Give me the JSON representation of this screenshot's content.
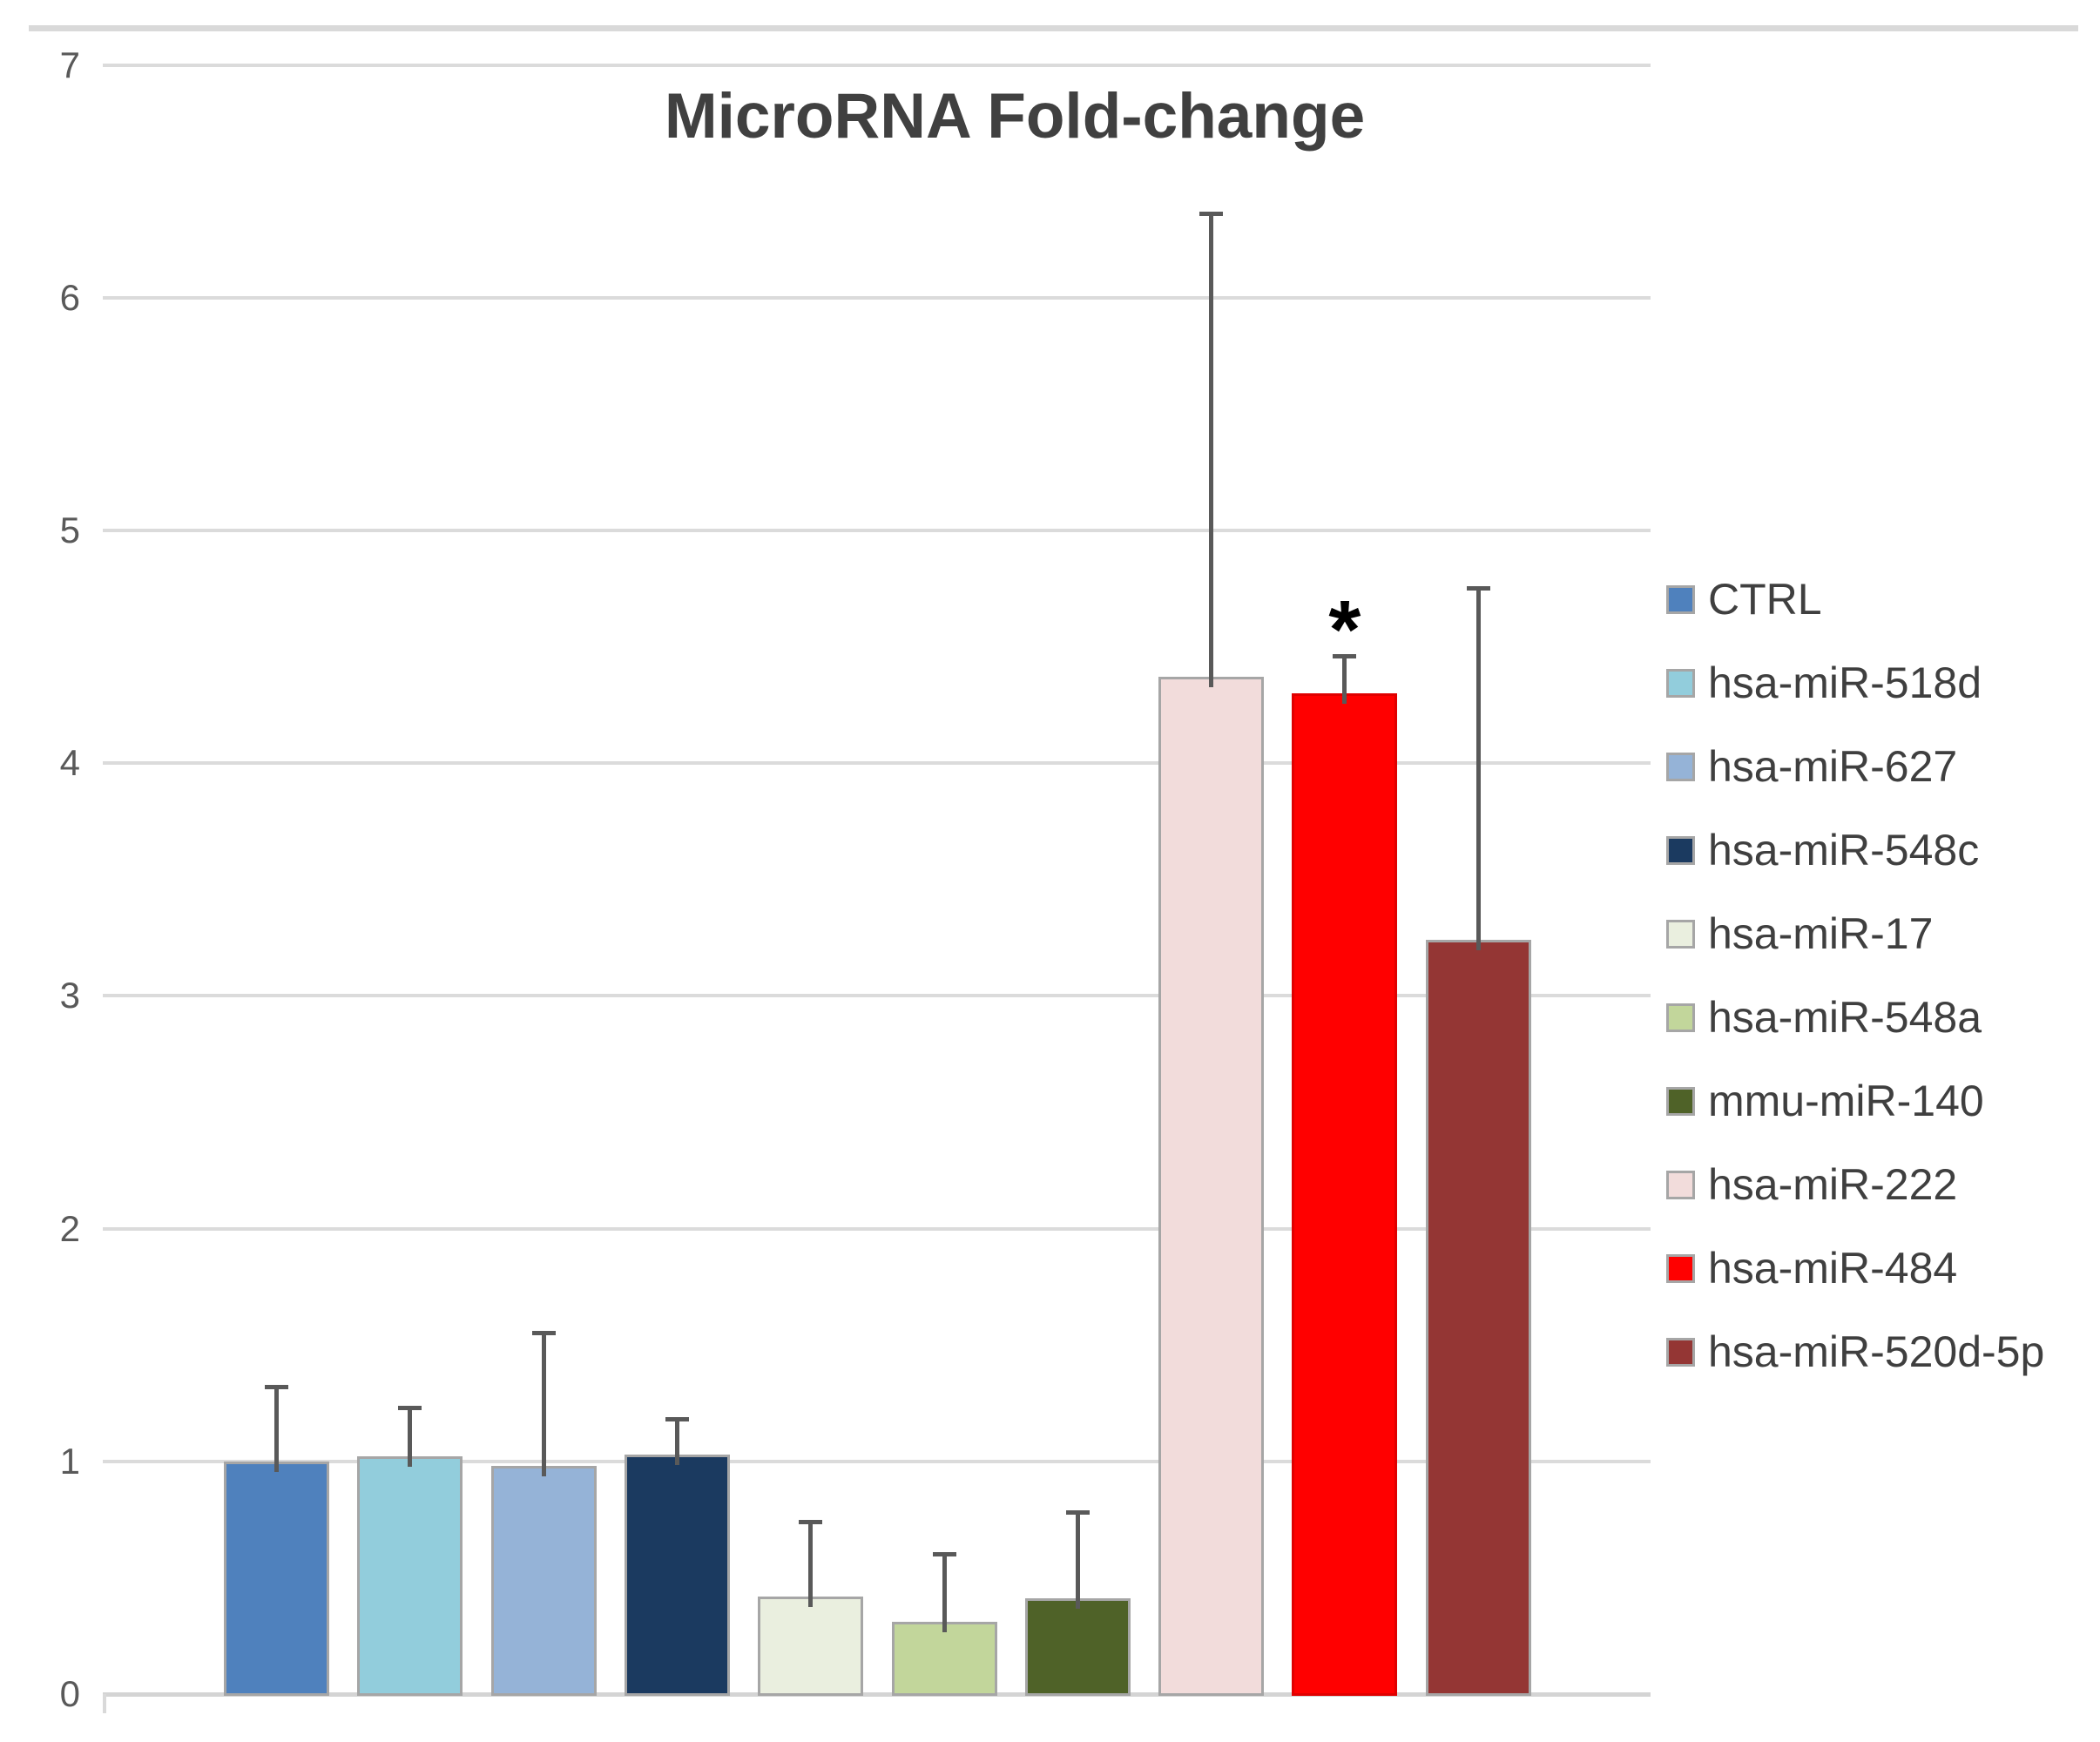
{
  "colors": {
    "title_text": "#404040",
    "axis_tick_text": "#595959",
    "legend_text": "#3F3F3F",
    "gridline": "#DBDBDB",
    "axis_line": "#D4D4D4",
    "error_bar": "#595959",
    "bar_border": "#A6A6A6",
    "red_bar_border": "#E00000",
    "top_border_strip": "#D9D9D9"
  },
  "chart_data": {
    "type": "bar",
    "title": "MicroRNA Fold-change",
    "xlabel": "",
    "ylabel": "",
    "ylim": [
      0,
      7
    ],
    "yticks": [
      0,
      1,
      2,
      3,
      4,
      5,
      6,
      7
    ],
    "grid": true,
    "legend_position": "right",
    "categories": [
      "CTRL",
      "hsa-miR-518d",
      "hsa-miR-627",
      "hsa-miR-548c",
      "hsa-miR-17",
      "hsa-miR-548a",
      "mmu-miR-140",
      "hsa-miR-222",
      "hsa-miR-484",
      "hsa-miR-520d-5p"
    ],
    "series": [
      {
        "name": "CTRL",
        "value": 1.0,
        "error_top": 1.33,
        "color": "#4F81BD"
      },
      {
        "name": "hsa-miR-518d",
        "value": 1.02,
        "error_top": 1.24,
        "color": "#92CDDC"
      },
      {
        "name": "hsa-miR-627",
        "value": 0.98,
        "error_top": 1.56,
        "color": "#95B3D7"
      },
      {
        "name": "hsa-miR-548c",
        "value": 1.03,
        "error_top": 1.19,
        "color": "#1B3A60"
      },
      {
        "name": "hsa-miR-17",
        "value": 0.42,
        "error_top": 0.75,
        "color": "#EAEFDF"
      },
      {
        "name": "hsa-miR-548a",
        "value": 0.31,
        "error_top": 0.61,
        "color": "#C2D69B"
      },
      {
        "name": "mmu-miR-140",
        "value": 0.41,
        "error_top": 0.79,
        "color": "#4F6228"
      },
      {
        "name": "hsa-miR-222",
        "value": 4.37,
        "error_top": 6.37,
        "color": "#F2DCDB"
      },
      {
        "name": "hsa-miR-484",
        "value": 4.3,
        "error_top": 4.47,
        "color": "#FF0000"
      },
      {
        "name": "hsa-miR-520d-5p",
        "value": 3.24,
        "error_top": 4.76,
        "color": "#943634"
      }
    ],
    "annotations": [
      {
        "target": "hsa-miR-484",
        "text": "*"
      }
    ]
  }
}
